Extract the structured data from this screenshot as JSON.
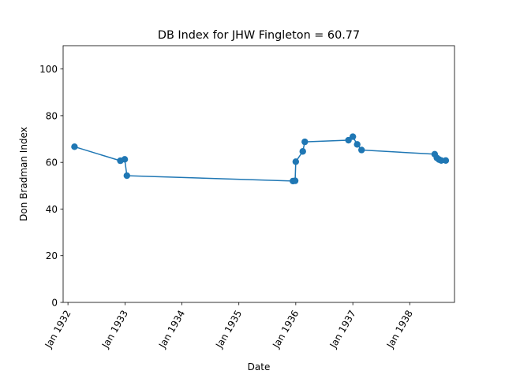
{
  "chart_data": {
    "type": "line",
    "title": "DB Index for JHW Fingleton = 60.77",
    "xlabel": "Date",
    "ylabel": "Don Bradman Index",
    "xlim": [
      "1931-12-01",
      "1938-10-15"
    ],
    "ylim": [
      0,
      110
    ],
    "grid": false,
    "color": "#1f77b4",
    "x_ticks": [
      "1932-01-01",
      "1933-01-01",
      "1934-01-01",
      "1935-01-01",
      "1936-01-01",
      "1937-01-01",
      "1938-01-01"
    ],
    "x_tick_labels": [
      "Jan 1932",
      "Jan 1933",
      "Jan 1934",
      "Jan 1935",
      "Jan 1936",
      "Jan 1937",
      "Jan 1938"
    ],
    "y_ticks": [
      0,
      20,
      40,
      60,
      80,
      100
    ],
    "series": [
      {
        "x": [
          "1932-02-12",
          "1932-12-02",
          "1932-12-30",
          "1933-01-13",
          "1935-12-14",
          "1935-12-28",
          "1936-01-01",
          "1936-02-15",
          "1936-02-28",
          "1936-12-04",
          "1937-01-01",
          "1937-01-29",
          "1937-02-26",
          "1938-06-10",
          "1938-06-24",
          "1938-07-08",
          "1938-07-22",
          "1938-08-20"
        ],
        "y": [
          66.7,
          60.7,
          61.3,
          54.3,
          52.0,
          52.1,
          60.3,
          64.7,
          68.8,
          69.5,
          71.0,
          67.7,
          65.3,
          63.5,
          61.9,
          61.2,
          60.8,
          60.8
        ]
      }
    ]
  }
}
